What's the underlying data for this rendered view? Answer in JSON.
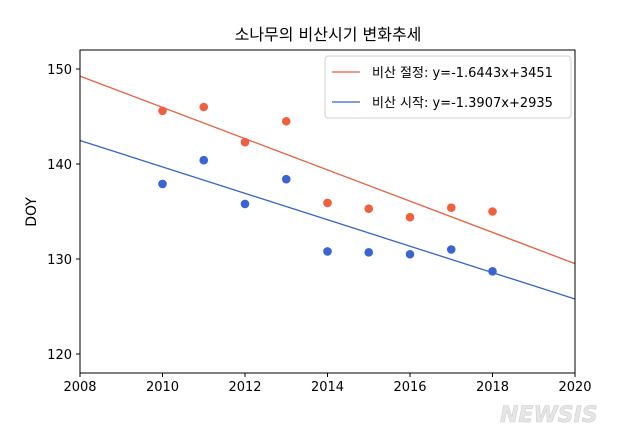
{
  "chart_data": {
    "type": "scatter",
    "title": "소나무의 비산시기 변화추세",
    "xlabel": "",
    "ylabel": "DOY",
    "xlim": [
      2008,
      2020
    ],
    "ylim": [
      118,
      152
    ],
    "xticks": [
      "2008",
      "2010",
      "2012",
      "2014",
      "2016",
      "2018",
      "2020"
    ],
    "yticks": [
      "120",
      "130",
      "140",
      "150"
    ],
    "grid": false,
    "legend_position": "top-right",
    "series": [
      {
        "name": "비산 절정: y=-1.6443x+3451",
        "color": "#f0603f",
        "line_color": "#e8613f",
        "slope": -1.6443,
        "intercept": 3451,
        "x": [
          2010,
          2011,
          2012,
          2013,
          2014,
          2015,
          2016,
          2017,
          2018
        ],
        "y": [
          145.6,
          146.0,
          142.3,
          144.5,
          135.9,
          135.3,
          134.4,
          135.4,
          135.0
        ]
      },
      {
        "name": "비산 시작: y=-1.3907x+2935",
        "color": "#3a63d4",
        "line_color": "#3565c8",
        "slope": -1.3907,
        "intercept": 2935,
        "x": [
          2010,
          2011,
          2012,
          2013,
          2014,
          2015,
          2016,
          2017,
          2018
        ],
        "y": [
          137.9,
          140.4,
          135.8,
          138.4,
          130.8,
          130.7,
          130.5,
          131.0,
          128.7
        ]
      }
    ]
  },
  "watermark": "NEWSIS"
}
